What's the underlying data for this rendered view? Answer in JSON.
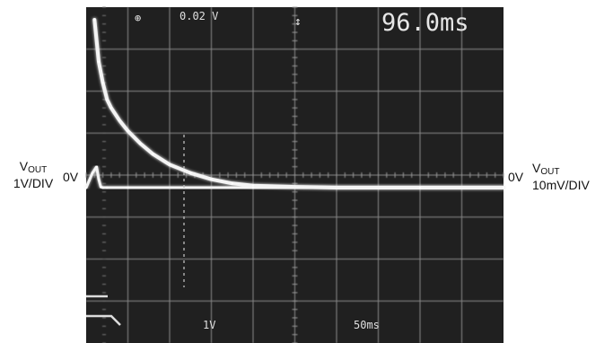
{
  "chart_data": {
    "type": "line",
    "title": "",
    "grid": true,
    "screen_readouts": {
      "top_channel": "0.02 V",
      "top_time": "96.0ms",
      "bottom_ch1_scale": "1V",
      "bottom_timebase": "50ms"
    },
    "left_axis": {
      "name_main": "V",
      "name_sub": "OUT",
      "scale": "1V/DIV",
      "zero_label": "0V"
    },
    "right_axis": {
      "name_main": "V",
      "name_sub": "OUT",
      "scale": "10mV/DIV",
      "zero_label": "0V"
    },
    "divisions": {
      "x": 10,
      "y": 8
    },
    "series": [
      {
        "name": "",
        "scale": "10mV/DIV",
        "x": [
          0.2,
          0.3,
          0.4,
          0.5,
          0.6,
          0.8,
          1.0,
          1.3,
          1.6,
          2.0,
          2.5,
          3.0,
          3.5,
          4.0,
          5.0,
          6.0,
          8.0,
          10.0
        ],
        "y": [
          4.0,
          3.0,
          2.5,
          2.1,
          1.9,
          1.6,
          1.35,
          1.05,
          0.8,
          0.55,
          0.35,
          0.2,
          0.1,
          0.05,
          0.02,
          0.0,
          0.0,
          0.0
        ]
      },
      {
        "name": "",
        "scale": "1V/DIV",
        "x": [
          0.0,
          0.15,
          0.25,
          0.3,
          0.35,
          0.4,
          0.5,
          1.0,
          4.0,
          8.0,
          10.0
        ],
        "y": [
          0.0,
          0.35,
          0.5,
          0.2,
          0.02,
          0.0,
          0.0,
          0.0,
          0.0,
          0.0,
          0.0
        ]
      }
    ]
  }
}
